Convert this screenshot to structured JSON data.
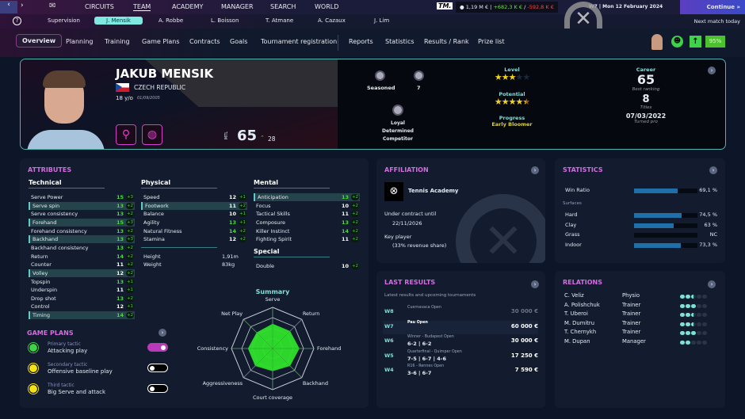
{
  "topnav": {
    "items": [
      "CIRCUITS",
      "TEAM",
      "ACADEMY",
      "MANAGER",
      "SEARCH",
      "WORLD"
    ],
    "active": "TEAM",
    "logo": "TM.",
    "balance": "1,19 M €",
    "income": "+682,3 K €",
    "expense": "-592,8 K €",
    "date": "W7 | Mon 12 February 2024",
    "continue": "Continue »",
    "next_match": "Next match today"
  },
  "players_nav": {
    "items": [
      "Supervision",
      "J. Mensik",
      "A. Robbe",
      "L. Boisson",
      "T. Atmane",
      "A. Cazaux",
      "J. Lim"
    ],
    "active": "J. Mensik"
  },
  "tabs": {
    "items": [
      "Overview",
      "Planning",
      "Training",
      "Game Plans",
      "Contracts",
      "Goals",
      "Tournament registration",
      "Reports",
      "Statistics",
      "Results / Rank",
      "Prize list"
    ],
    "active": "Overview",
    "morale_pct": "95%"
  },
  "player": {
    "name": "JAKUB MENSIK",
    "country": "CZECH REPUBLIC",
    "age": "18 y/o",
    "birthdate": "01/09/2005",
    "mtl_label": "MTL",
    "mtl": "65",
    "mtl_progress": "28",
    "traits": {
      "experience": "Seasoned",
      "count": "7",
      "personality": [
        "Loyal",
        "Determined",
        "Competitor"
      ]
    },
    "level_label": "Level",
    "level_stars": 3,
    "potential_label": "Potential",
    "potential_stars": 4.5,
    "progress_label": "Progress",
    "progress": "Early Bloomer",
    "career_label": "Career",
    "best_ranking": "65",
    "best_ranking_label": "Best ranking",
    "titles": "8",
    "titles_label": "Titles",
    "turned_pro": "07/03/2022",
    "turned_pro_label": "Turned pro"
  },
  "attributes": {
    "title": "ATTRIBUTES",
    "technical": {
      "title": "Technical",
      "rows": [
        [
          "Serve Power",
          "15",
          "+3",
          0
        ],
        [
          "Serve spin",
          "13",
          "+2",
          1
        ],
        [
          "Serve consistency",
          "13",
          "+2",
          0
        ],
        [
          "Forehand",
          "15",
          "+3",
          1
        ],
        [
          "Forehand consistency",
          "13",
          "+2",
          0
        ],
        [
          "Backhand",
          "13",
          "+3",
          1
        ],
        [
          "Backhand consistency",
          "13",
          "+2",
          0
        ],
        [
          "Return",
          "14",
          "+2",
          0
        ],
        [
          "Counter",
          "11",
          "+2",
          0
        ],
        [
          "Volley",
          "12",
          "+2",
          1
        ],
        [
          "Topspin",
          "13",
          "+1",
          0
        ],
        [
          "Underspin",
          "11",
          "+1",
          0
        ],
        [
          "Drop shot",
          "13",
          "+2",
          0
        ],
        [
          "Control",
          "12",
          "+1",
          0
        ],
        [
          "Timing",
          "14",
          "+2",
          1
        ]
      ]
    },
    "physical": {
      "title": "Physical",
      "rows": [
        [
          "Speed",
          "12",
          "+1",
          0
        ],
        [
          "Footwork",
          "11",
          "+2",
          1
        ],
        [
          "Balance",
          "10",
          "+1",
          0
        ],
        [
          "Agility",
          "13",
          "+1",
          0
        ],
        [
          "Natural Fitness",
          "14",
          "+2",
          0
        ],
        [
          "Stamina",
          "12",
          "+2",
          0
        ]
      ],
      "height_label": "Height",
      "height": "1,91m",
      "weight_label": "Weight",
      "weight": "83kg"
    },
    "mental": {
      "title": "Mental",
      "rows": [
        [
          "Anticipation",
          "13",
          "+2",
          1
        ],
        [
          "Focus",
          "10",
          "+2",
          0
        ],
        [
          "Tactical Skills",
          "11",
          "+2",
          0
        ],
        [
          "Composure",
          "13",
          "+2",
          0
        ],
        [
          "Killer Instinct",
          "14",
          "+2",
          0
        ],
        [
          "Fighting Spirit",
          "11",
          "+2",
          0
        ]
      ]
    },
    "special": {
      "title": "Special",
      "rows": [
        [
          "Double",
          "10",
          "+2",
          0
        ]
      ]
    }
  },
  "game_plans": {
    "title": "GAME PLANS",
    "items": [
      {
        "label": "Primary tactic",
        "value": "Attacking play",
        "on": true,
        "color": "#3fd24a"
      },
      {
        "label": "Secondary tactic",
        "value": "Offensive baseline play",
        "on": false,
        "color": "#f2e21b"
      },
      {
        "label": "Third tactic",
        "value": "Big Serve and attack",
        "on": false,
        "color": "#f2e21b"
      }
    ]
  },
  "chart_data": {
    "type": "radar",
    "title": "Summary",
    "categories": [
      "Serve",
      "Return",
      "Forehand",
      "Backhand",
      "Court coverage",
      "Aggressiveness",
      "Consistency",
      "Net Play"
    ],
    "values": [
      0.6,
      0.6,
      0.65,
      0.6,
      0.55,
      0.6,
      0.6,
      0.55
    ],
    "range": [
      0,
      1
    ],
    "color": "#2ee02a"
  },
  "affiliation": {
    "title": "AFFILIATION",
    "club": "Tennis Academy",
    "contract_label": "Under contract until",
    "contract": "22/11/2026",
    "status": "Key player",
    "revenue": "(33% revenue share)"
  },
  "statistics": {
    "title": "STATISTICS",
    "win_ratio_label": "Win Ratio",
    "win_ratio": "69,1 %",
    "win_ratio_value": 69.1,
    "surfaces_label": "Surfaces",
    "surfaces": [
      {
        "name": "Hard",
        "value": "74,5 %",
        "pct": 74.5
      },
      {
        "name": "Clay",
        "value": "63 %",
        "pct": 63
      },
      {
        "name": "Grass",
        "value": "NC",
        "pct": 0
      },
      {
        "name": "Indoor",
        "value": "73,3 %",
        "pct": 73.3
      }
    ]
  },
  "last_results": {
    "title": "LAST RESULTS",
    "subtitle": "Latest results and upcoming tournaments",
    "rows": [
      {
        "week": "W8",
        "event": "Cuernavaca Open",
        "score": "",
        "prize": "30 000 €",
        "upcoming": true
      },
      {
        "week": "W7",
        "event": "Pau Open",
        "score": "",
        "prize": "60 000 €"
      },
      {
        "week": "W6",
        "event": "Winner - Budapest Open",
        "score": "6-2 | 6-2",
        "prize": "30 000 €"
      },
      {
        "week": "W5",
        "event": "Quarterfinal - Quimper Open",
        "score": "7-5 | 6-7 | 4-6",
        "prize": "17 250 €"
      },
      {
        "week": "W4",
        "event": "R16 - Rennes Open",
        "score": "3-6 | 6-7",
        "prize": "7 590 €"
      }
    ]
  },
  "relations": {
    "title": "RELATIONS",
    "rows": [
      {
        "name": "C. Veliz",
        "role": "Physio",
        "level": 2.5
      },
      {
        "name": "A. Polishchuk",
        "role": "Trainer",
        "level": 3
      },
      {
        "name": "T. Uberoi",
        "role": "Trainer",
        "level": 2.5
      },
      {
        "name": "M. Dumitru",
        "role": "Trainer",
        "level": 2.5
      },
      {
        "name": "T. Chernykh",
        "role": "Trainer",
        "level": 3
      },
      {
        "name": "M. Dupan",
        "role": "Manager",
        "level": 2
      }
    ]
  }
}
